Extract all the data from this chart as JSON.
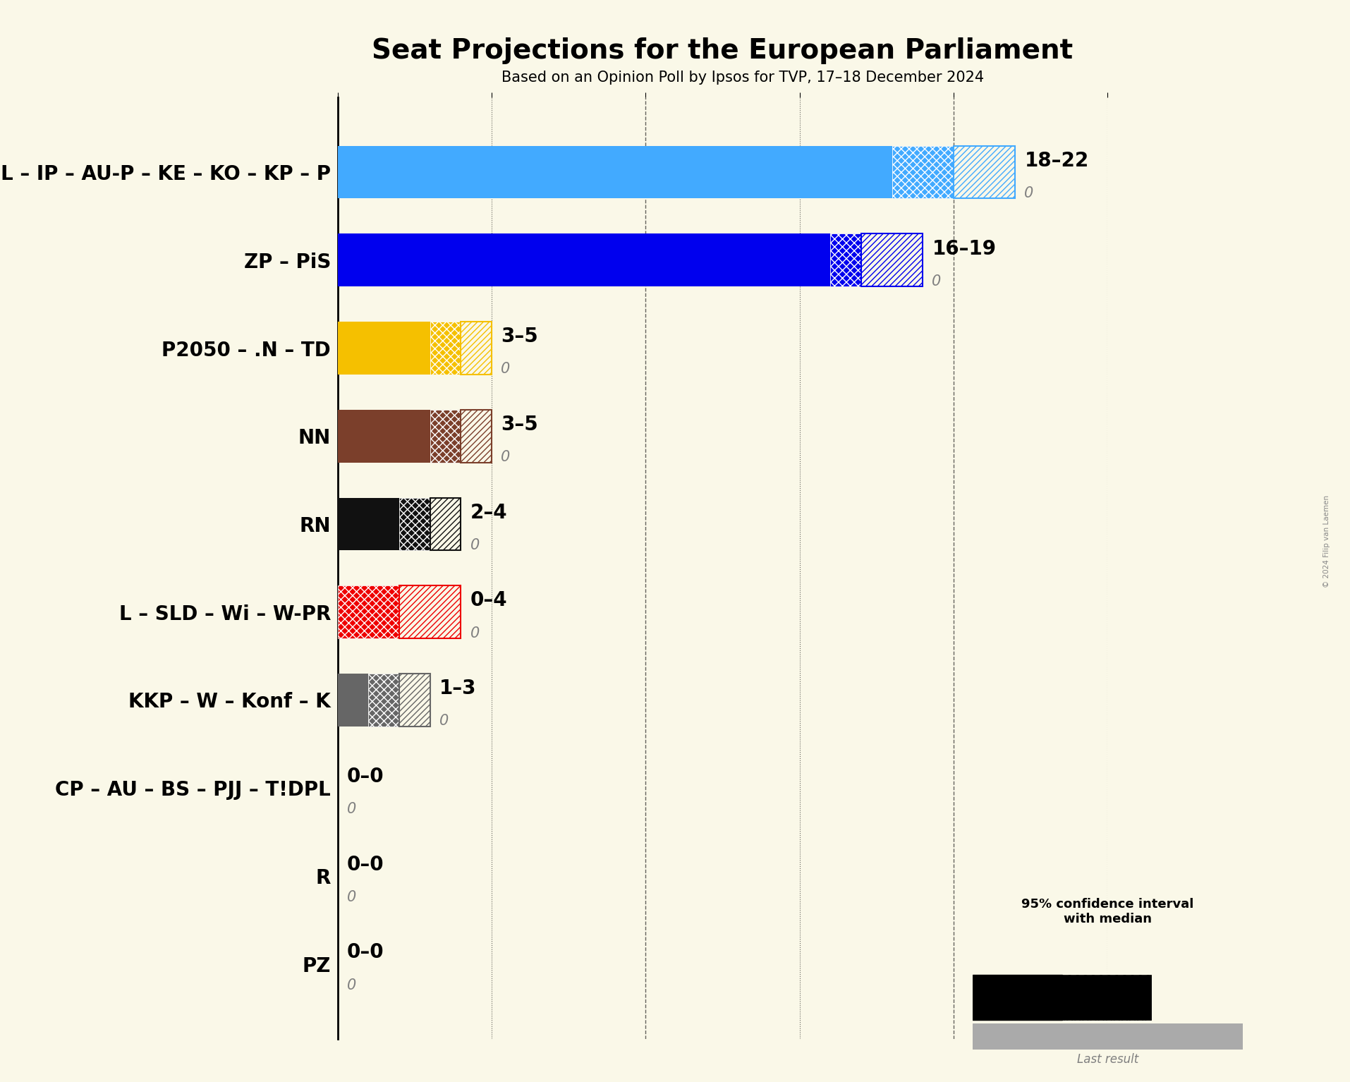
{
  "title": "Seat Projections for the European Parliament",
  "subtitle": "Based on an Opinion Poll by Ipsos for TVP, 17–18 December 2024",
  "background_color": "#faf8e8",
  "parties": [
    "PO – PSL – IP – AU-P – KE – KO – KP – P",
    "ZP – PiS",
    "P2050 – .N – TD",
    "NN",
    "RN",
    "L – SLD – Wi – W-PR",
    "KKP – W – Konf – K",
    "CP – AU – BS – PJJ – T!DPL",
    "R",
    "PZ"
  ],
  "median_values": [
    18,
    16,
    3,
    3,
    2,
    0,
    1,
    0,
    0,
    0
  ],
  "ci_low": [
    18,
    16,
    3,
    3,
    2,
    0,
    1,
    0,
    0,
    0
  ],
  "ci_mid": [
    20,
    17,
    4,
    4,
    3,
    2,
    2,
    0,
    0,
    0
  ],
  "ci_high": [
    22,
    19,
    5,
    5,
    4,
    4,
    3,
    0,
    0,
    0
  ],
  "last_results": [
    0,
    0,
    0,
    0,
    0,
    0,
    0,
    0,
    0,
    0
  ],
  "range_labels": [
    "18–22",
    "16–19",
    "3–5",
    "3–5",
    "2–4",
    "0–4",
    "1–3",
    "0–0",
    "0–0",
    "0–0"
  ],
  "colors": [
    "#42aaff",
    "#0000ee",
    "#f5c000",
    "#7b3f2b",
    "#111111",
    "#ee0000",
    "#666666",
    "#cccccc",
    "#cccccc",
    "#cccccc"
  ],
  "xlim": [
    0,
    25
  ],
  "xtick_positions": [
    0,
    5,
    10,
    15,
    20,
    25
  ],
  "bar_height": 0.6,
  "title_fontsize": 28,
  "subtitle_fontsize": 15,
  "label_fontsize": 20,
  "range_fontsize": 20,
  "last_fontsize": 15,
  "tick_fontsize": 13,
  "copyright_text": "© 2024 Filip van Laemen",
  "legend_text": "95% confidence interval\nwith median",
  "legend_last_result": "Last result"
}
